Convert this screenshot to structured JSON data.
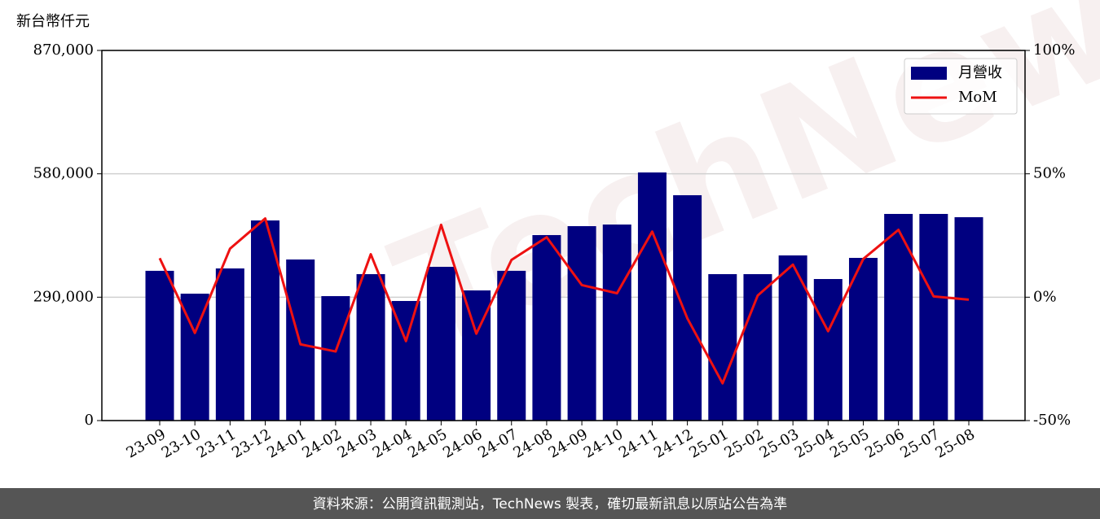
{
  "chart_data": {
    "type": "bar",
    "y_label": "新台幣仟元",
    "categories": [
      "23-09",
      "23-10",
      "23-11",
      "23-12",
      "24-01",
      "24-02",
      "24-03",
      "24-04",
      "24-05",
      "24-06",
      "24-07",
      "24-08",
      "24-09",
      "24-10",
      "24-11",
      "24-12",
      "25-01",
      "25-02",
      "25-03",
      "25-04",
      "25-05",
      "25-06",
      "25-07",
      "25-08"
    ],
    "series": [
      {
        "name": "月營收",
        "type": "bar",
        "color": "#000080",
        "values": [
          352000,
          298300,
          357600,
          470400,
          378600,
          292500,
          344200,
          281100,
          361400,
          305900,
          352000,
          436000,
          457000,
          460800,
          583200,
          529700,
          344200,
          344200,
          388200,
          332700,
          382400,
          485700,
          485700,
          478000
        ]
      },
      {
        "name": "MoM",
        "type": "line",
        "color": "#ee1111",
        "axis": "y2",
        "values": [
          15.8,
          -14.5,
          19.7,
          31.9,
          -19.1,
          -22.0,
          17.4,
          -17.8,
          29.3,
          -14.8,
          15.1,
          24.3,
          4.9,
          1.6,
          26.6,
          -8.6,
          -34.9,
          0.7,
          13.2,
          -13.8,
          15.5,
          27.3,
          0.3,
          -1.0
        ]
      }
    ],
    "ylim": [
      0,
      870000
    ],
    "yticks": [
      0,
      {
        "value": 290000,
        "label": "290,000"
      },
      {
        "value": 580000,
        "label": "580,000"
      },
      {
        "value": 870000,
        "label": "870,000"
      }
    ],
    "y2lim": [
      -50,
      100
    ],
    "y2ticks": [
      {
        "value": -50,
        "label": "-50%"
      },
      {
        "value": 0,
        "label": "0%"
      },
      {
        "value": 50,
        "label": "50%"
      },
      {
        "value": 100,
        "label": "100%"
      }
    ],
    "grid": true,
    "legend": "upper right"
  },
  "watermark": "TechNews",
  "footer": "資料來源：公開資訊觀測站，TechNews 製表，確切最新訊息以原站公告為準"
}
